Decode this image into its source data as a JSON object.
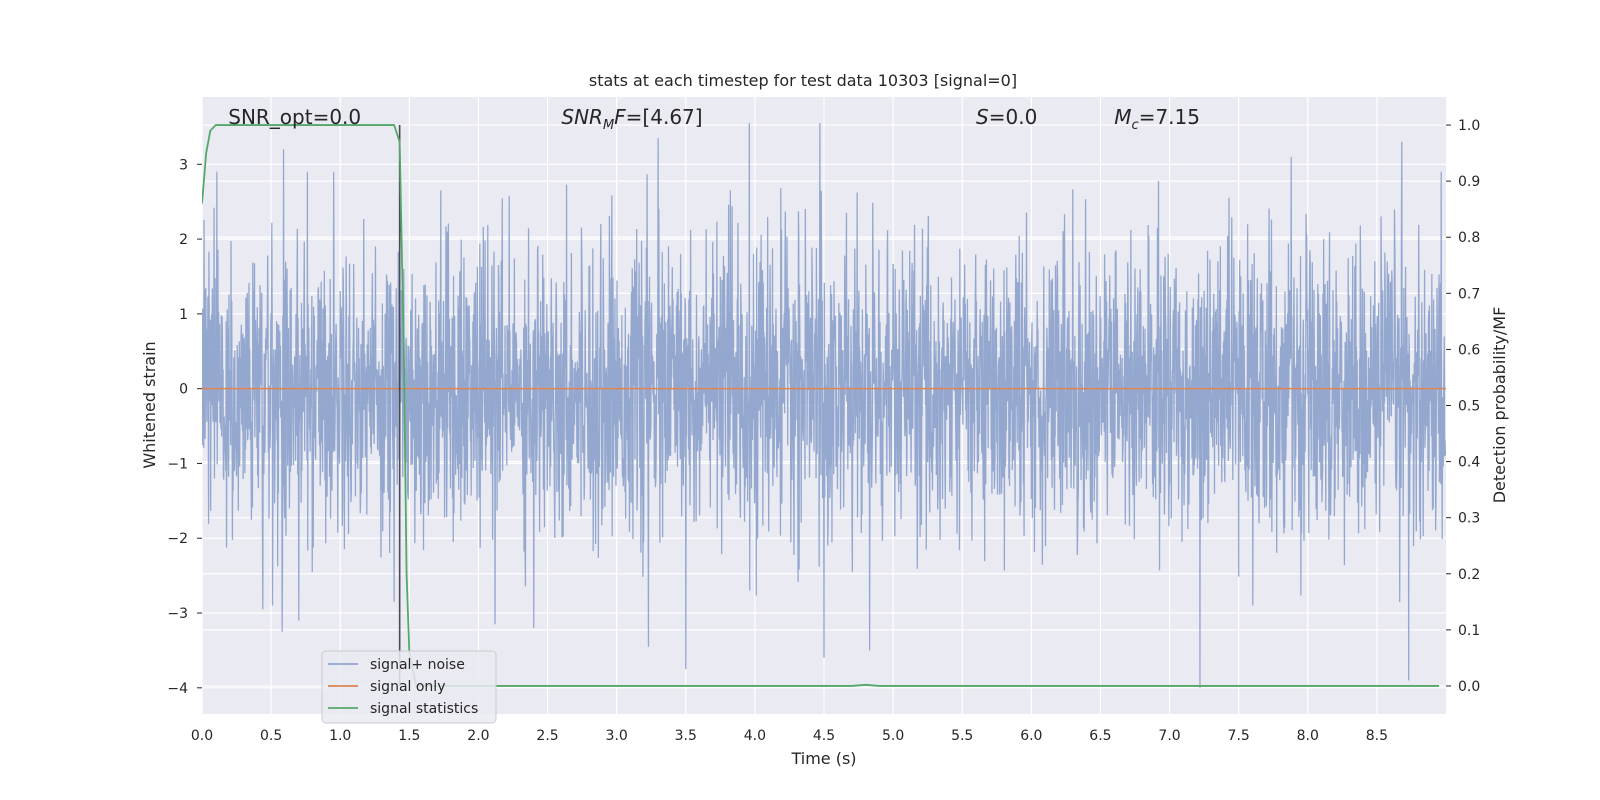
{
  "chart_data": {
    "type": "line",
    "title": "stats at each timestep for test data 10303 [signal=0]",
    "xlabel": "Time (s)",
    "ylabel_left": "Whitened strain",
    "ylabel_right": "Detection probability/MF",
    "xlim": [
      0.0,
      9.0
    ],
    "ylim_left": [
      -4.35,
      3.9
    ],
    "ylim_right": [
      -0.05,
      1.05
    ],
    "xticks": [
      "0.0",
      "0.5",
      "1.0",
      "1.5",
      "2.0",
      "2.5",
      "3.0",
      "3.5",
      "4.0",
      "4.5",
      "5.0",
      "5.5",
      "6.0",
      "6.5",
      "7.0",
      "7.5",
      "8.0",
      "8.5"
    ],
    "xtick_values": [
      0.0,
      0.5,
      1.0,
      1.5,
      2.0,
      2.5,
      3.0,
      3.5,
      4.0,
      4.5,
      5.0,
      5.5,
      6.0,
      6.5,
      7.0,
      7.5,
      8.0,
      8.5
    ],
    "yticks_left": [
      "3",
      "2",
      "1",
      "0",
      "−1",
      "−2",
      "−3",
      "−4"
    ],
    "ytick_values_left": [
      3,
      2,
      1,
      0,
      -1,
      -2,
      -3,
      -4
    ],
    "yticks_right": [
      "1.0",
      "0.9",
      "0.8",
      "0.7",
      "0.6",
      "0.5",
      "0.4",
      "0.3",
      "0.2",
      "0.1",
      "0.0"
    ],
    "ytick_values_right": [
      1.0,
      0.9,
      0.8,
      0.7,
      0.6,
      0.5,
      0.4,
      0.3,
      0.2,
      0.1,
      0.0
    ],
    "grid": true,
    "legend_position": "lower-left",
    "annotations": [
      {
        "name": "snr-opt",
        "text": "SNR_opt=0.0",
        "x": 0.19
      },
      {
        "name": "snr-mf",
        "text": "SNR",
        "sub": "M",
        "rest": "F=[4.67]",
        "x": 2.6
      },
      {
        "name": "s-value",
        "text": "S",
        "rest": "=0.0",
        "x": 5.6
      },
      {
        "name": "mc-value",
        "text": "M",
        "sub": "c",
        "rest": "=7.15",
        "x": 6.6
      }
    ],
    "marker_line_x": 1.43,
    "series": [
      {
        "name": "signal+ noise",
        "axis": "left",
        "color": "#8fa4cc",
        "noise_std": 0.95,
        "x_range": [
          0.0,
          9.0
        ],
        "peaks": [
          {
            "x": 0.59,
            "y": 3.2
          },
          {
            "x": 0.58,
            "y": -3.25
          },
          {
            "x": 0.44,
            "y": -2.95
          },
          {
            "x": 0.7,
            "y": -3.1
          },
          {
            "x": 1.39,
            "y": -2.85
          },
          {
            "x": 2.12,
            "y": -3.15
          },
          {
            "x": 2.4,
            "y": -3.2
          },
          {
            "x": 3.23,
            "y": -3.45
          },
          {
            "x": 3.5,
            "y": -3.75
          },
          {
            "x": 3.3,
            "y": 3.35
          },
          {
            "x": 3.96,
            "y": 3.55
          },
          {
            "x": 4.47,
            "y": 3.55
          },
          {
            "x": 4.5,
            "y": -3.6
          },
          {
            "x": 4.83,
            "y": -3.5
          },
          {
            "x": 7.22,
            "y": -4.0
          },
          {
            "x": 8.73,
            "y": -3.9
          },
          {
            "x": 8.68,
            "y": 3.3
          },
          {
            "x": 7.88,
            "y": 3.1
          }
        ]
      },
      {
        "name": "signal only",
        "axis": "left",
        "color": "#dd8452",
        "x": [
          0.0,
          9.0
        ],
        "y": [
          0.0,
          0.0
        ]
      },
      {
        "name": "signal statistics",
        "axis": "right",
        "color": "#55a868",
        "x": [
          0.0,
          0.03,
          0.06,
          0.1,
          0.2,
          0.5,
          1.0,
          1.39,
          1.43,
          1.46,
          1.48,
          1.5,
          1.55,
          2.0,
          3.0,
          4.0,
          4.7,
          4.8,
          4.9,
          5.5,
          6.0,
          7.0,
          8.0,
          8.95
        ],
        "y": [
          0.86,
          0.95,
          0.99,
          1.0,
          1.0,
          1.0,
          1.0,
          1.0,
          0.97,
          0.6,
          0.2,
          0.06,
          0.0,
          0.0,
          0.0,
          0.0,
          0.0,
          0.002,
          0.0,
          0.0,
          0.0,
          0.0,
          0.0,
          0.0
        ]
      }
    ]
  }
}
